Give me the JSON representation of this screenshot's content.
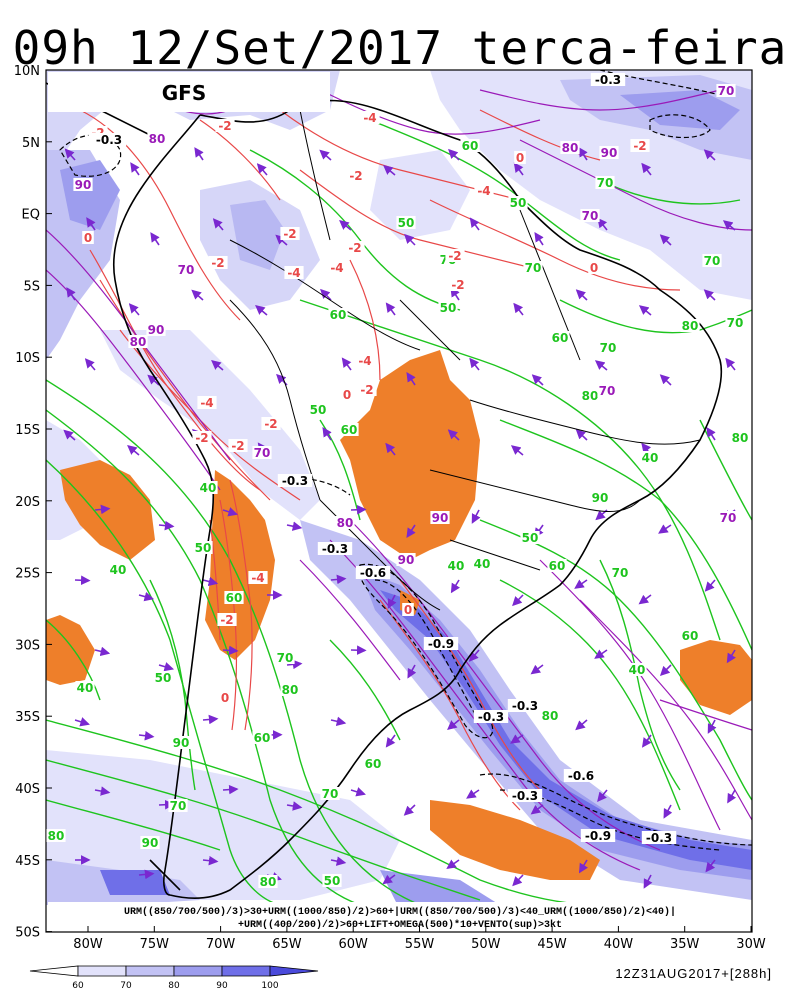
{
  "title": "09h 12/Set/2017 terca-feira",
  "model_label": "GFS",
  "formula_line1": "URM((850/700/500)/3)>30+URM((1000/850)/2)>60+|URM((850/700/500)/3)<40_URM((1000/850)/2)<40)|",
  "formula_line2": "+URM((400/200)/2)>60+LIFT+OMEGA(500)*10+VENTO(sup)>3kt",
  "run_info": "12Z31AUG2017+[288h]",
  "lat_labels": [
    "10N",
    "5N",
    "EQ",
    "5S",
    "10S",
    "15S",
    "20S",
    "25S",
    "30S",
    "35S",
    "40S",
    "45S",
    "50S"
  ],
  "lon_labels": [
    "80W",
    "75W",
    "70W",
    "65W",
    "60W",
    "55W",
    "50W",
    "45W",
    "40W",
    "35W",
    "30W"
  ],
  "colorbar": {
    "labels": [
      "60",
      "70",
      "80",
      "90",
      "100"
    ],
    "colors": [
      "#ffffff",
      "#e2e2fb",
      "#c2c2f4",
      "#9d9dee",
      "#6f6fe8",
      "#4a4adb"
    ]
  },
  "contour_labels": {
    "green": [
      "70",
      "70",
      "60",
      "50",
      "70",
      "60",
      "70",
      "80",
      "50",
      "50",
      "60",
      "70",
      "80",
      "70",
      "80",
      "50",
      "60",
      "40",
      "40",
      "50",
      "60",
      "70",
      "80",
      "90",
      "40",
      "50",
      "60",
      "70",
      "80",
      "40",
      "50",
      "60",
      "70",
      "40",
      "60",
      "80",
      "90",
      "70",
      "80",
      "90",
      "40",
      "50",
      "60",
      "40"
    ],
    "red": [
      "-2",
      "-2",
      "-4",
      "-2",
      "-4",
      "-2",
      "-2",
      "-4",
      "-2",
      "-2",
      "-4",
      "-2",
      "-2",
      "0",
      "-2",
      "-4",
      "-2",
      "0",
      "-2",
      "-4",
      "-2",
      "0",
      "0",
      "-4",
      "-2",
      "0",
      "0"
    ],
    "black": [
      "-0.3",
      "-0.3",
      "-0.3",
      "-0.3",
      "-0.6",
      "-0.9",
      "-0.3",
      "-0.3",
      "-0.3",
      "-0.6",
      "-0.9",
      "-0.3"
    ],
    "purple": [
      "70",
      "90",
      "80",
      "90",
      "80",
      "70",
      "90",
      "80",
      "70",
      "90",
      "80",
      "70",
      "70",
      "70",
      "90"
    ]
  },
  "colors": {
    "green": "#1ec41e",
    "red": "#e84848",
    "purple": "#9a1ab8",
    "vector": "#7a28d0",
    "orange": "#ee7f2a",
    "black": "#000000"
  }
}
